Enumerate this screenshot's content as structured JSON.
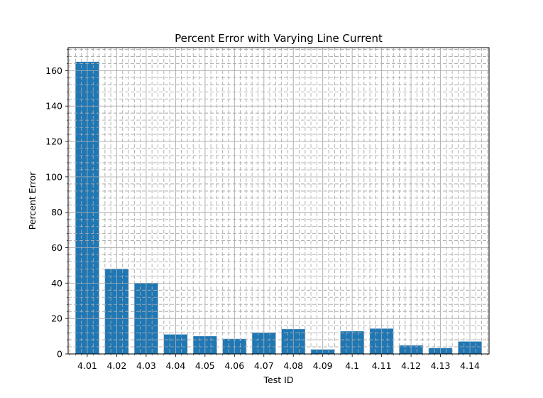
{
  "chart_data": {
    "type": "bar",
    "title": "Percent Error with Varying Line Current",
    "xlabel": "Test ID",
    "ylabel": "Percent Error",
    "categories": [
      "4.01",
      "4.02",
      "4.03",
      "4.04",
      "4.05",
      "4.06",
      "4.07",
      "4.08",
      "4.09",
      "4.1",
      "4.11",
      "4.12",
      "4.13",
      "4.14"
    ],
    "values": [
      165,
      48,
      40,
      11,
      10,
      8.5,
      12,
      14,
      2.5,
      12.8,
      14.3,
      4.8,
      3.3,
      7
    ],
    "ylim": [
      0,
      173
    ],
    "yticks": [
      0,
      20,
      40,
      60,
      80,
      100,
      120,
      140,
      160
    ],
    "grid": "major and minor",
    "bar_color": "#1f77b4"
  }
}
